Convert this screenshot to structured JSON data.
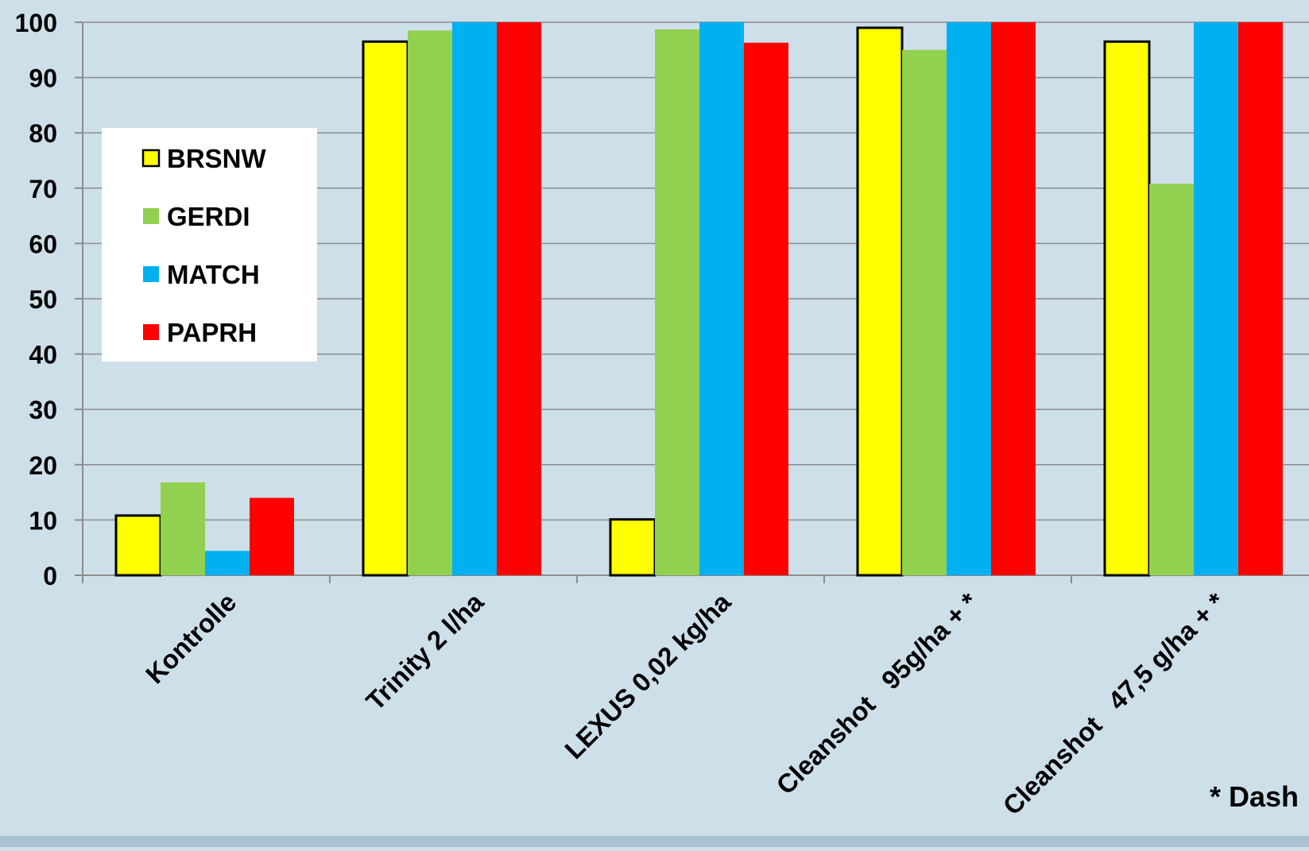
{
  "chart_data": {
    "type": "bar",
    "title": "",
    "xlabel": "",
    "ylabel": "",
    "ylim": [
      0,
      100
    ],
    "yticks": [
      0,
      10,
      20,
      30,
      40,
      50,
      60,
      70,
      80,
      90,
      100
    ],
    "grid": true,
    "legend_position": "top-left",
    "categories": [
      "Kontrolle",
      "Trinity 2 l/ha",
      "LEXUS 0,02 kg/ha",
      "Cleanshot   95g/ha + *",
      "Cleanshot   47,5 g/ha + *"
    ],
    "series": [
      {
        "name": "BRSNW",
        "color": "#ffff00",
        "outlined": true,
        "values": [
          10.8,
          96.5,
          10.1,
          99.0,
          96.5
        ]
      },
      {
        "name": "GERDI",
        "color": "#92d050",
        "outlined": false,
        "values": [
          16.8,
          98.5,
          98.7,
          95.0,
          70.8
        ]
      },
      {
        "name": "MATCH",
        "color": "#00b0f0",
        "outlined": false,
        "values": [
          4.4,
          100,
          100,
          100,
          100
        ]
      },
      {
        "name": "PAPRH",
        "color": "#ff0000",
        "outlined": false,
        "values": [
          14.0,
          100,
          96.3,
          100,
          100
        ]
      }
    ],
    "annotation": "* Dash"
  }
}
